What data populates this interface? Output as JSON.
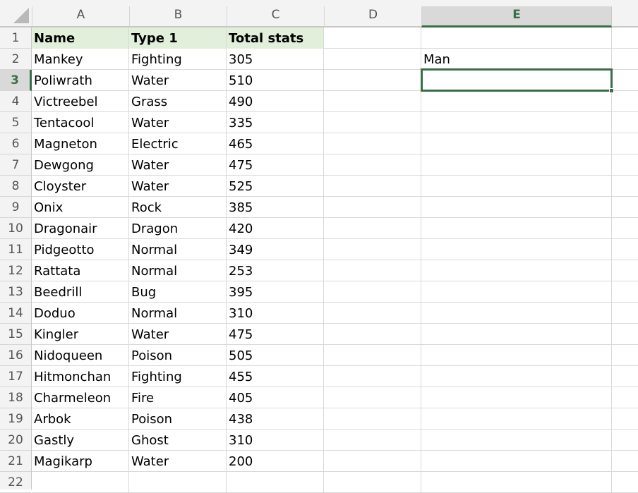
{
  "columns": [
    "A",
    "B",
    "C",
    "D",
    "E"
  ],
  "selected_column": "E",
  "selected_row": 3,
  "row_numbers": [
    1,
    2,
    3,
    4,
    5,
    6,
    7,
    8,
    9,
    10,
    11,
    12,
    13,
    14,
    15,
    16,
    17,
    18,
    19,
    20,
    21,
    22
  ],
  "header": {
    "name": "Name",
    "type": "Type 1",
    "total": "Total stats"
  },
  "rows": [
    [
      "Mankey",
      "Fighting",
      "305"
    ],
    [
      "Poliwrath",
      "Water",
      "510"
    ],
    [
      "Victreebel",
      "Grass",
      "490"
    ],
    [
      "Tentacool",
      "Water",
      "335"
    ],
    [
      "Magneton",
      "Electric",
      "465"
    ],
    [
      "Dewgong",
      "Water",
      "475"
    ],
    [
      "Cloyster",
      "Water",
      "525"
    ],
    [
      "Onix",
      "Rock",
      "385"
    ],
    [
      "Dragonair",
      "Dragon",
      "420"
    ],
    [
      "Pidgeotto",
      "Normal",
      "349"
    ],
    [
      "Rattata",
      "Normal",
      "253"
    ],
    [
      "Beedrill",
      "Bug",
      "395"
    ],
    [
      "Doduo",
      "Normal",
      "310"
    ],
    [
      "Kingler",
      "Water",
      "475"
    ],
    [
      "Nidoqueen",
      "Poison",
      "505"
    ],
    [
      "Hitmonchan",
      "Fighting",
      "455"
    ],
    [
      "Charmeleon",
      "Fire",
      "405"
    ],
    [
      "Arbok",
      "Poison",
      "438"
    ],
    [
      "Gastly",
      "Ghost",
      "310"
    ],
    [
      "Magikarp",
      "Water",
      "200"
    ]
  ],
  "e2_value": "Man",
  "colors": {
    "accent": "#3a6e48",
    "header_fill": "#e2efda"
  }
}
